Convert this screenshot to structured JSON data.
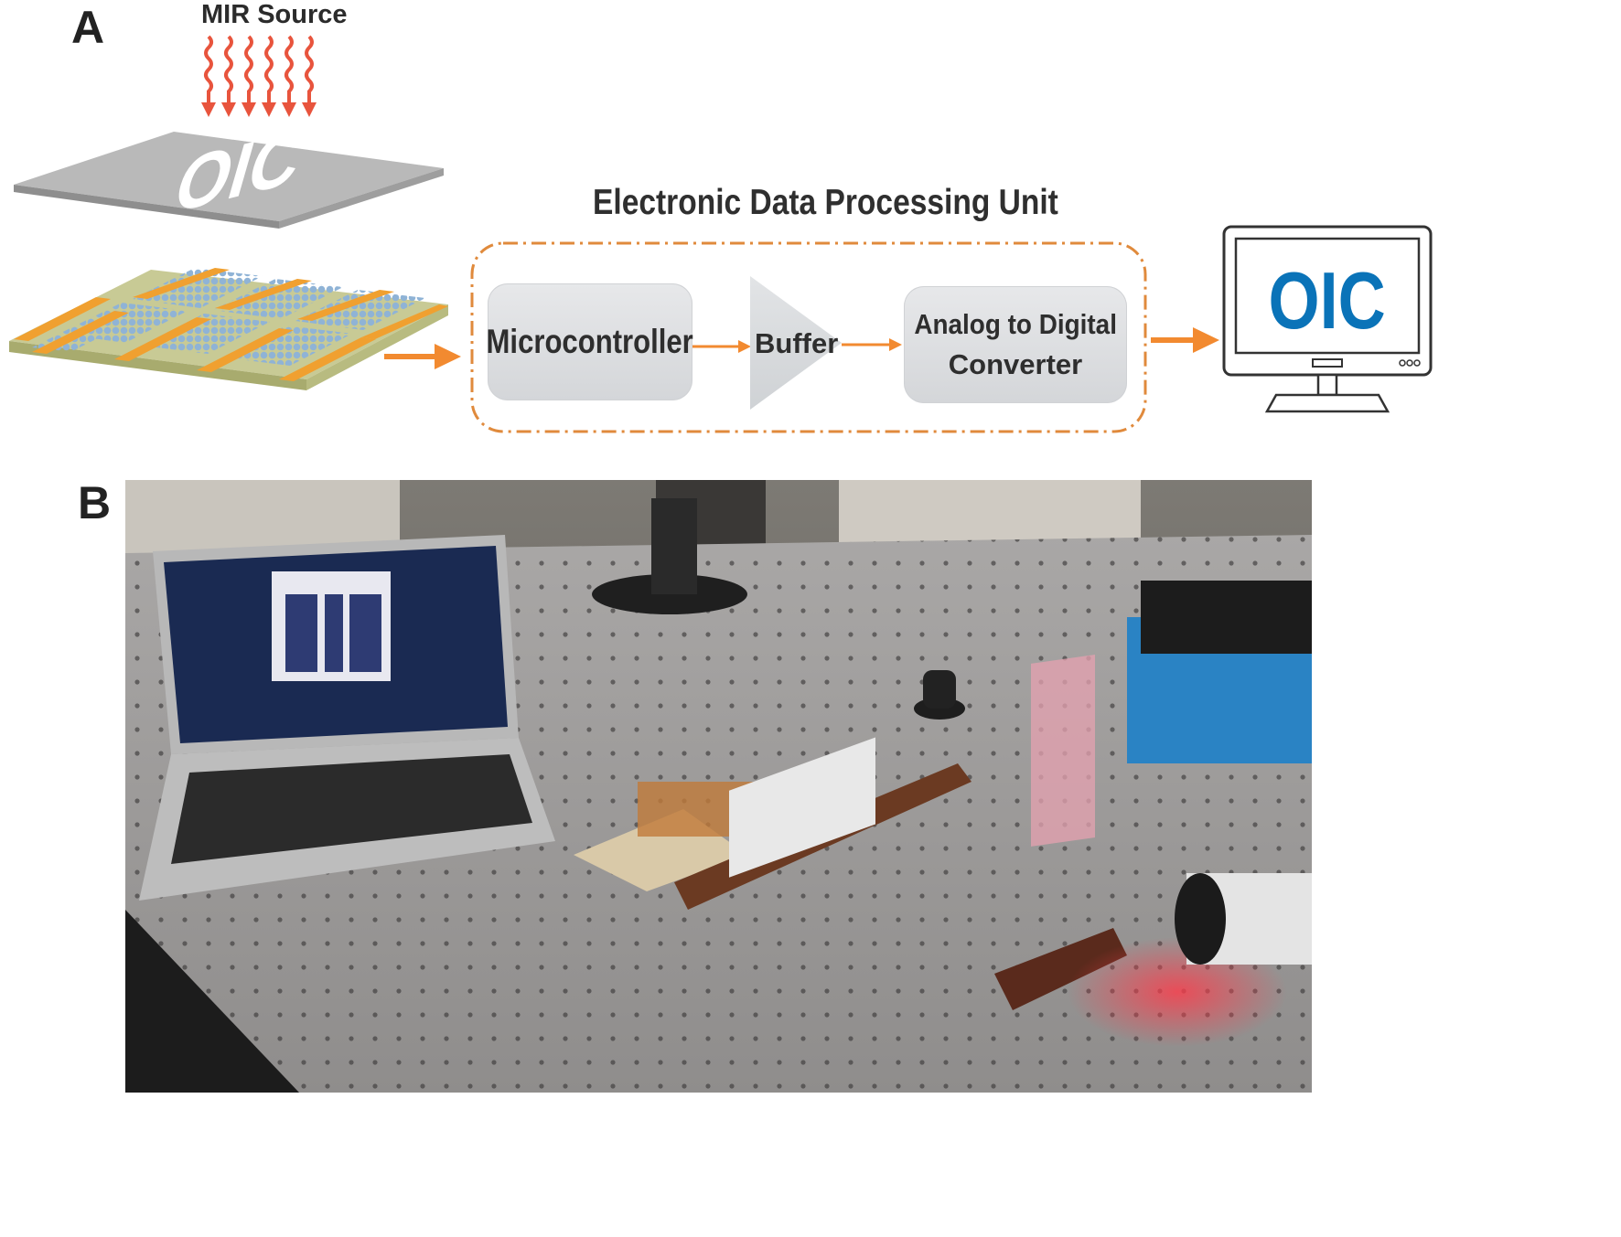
{
  "panel_a": {
    "letter": "A",
    "source_label": "MIR Source",
    "mask_text": "OIC",
    "epu_title": "Electronic Data Processing Unit",
    "blocks": {
      "microcontroller": "Microcontroller",
      "buffer": "Buffer",
      "adc_line1": "Analog to Digital",
      "adc_line2": "Converter"
    },
    "monitor_text": "OIC",
    "colors": {
      "arrow": "#f28a30",
      "radiation": "#e8543d",
      "monitor_text": "#0a73b8",
      "dashed_border": "#e08a3c"
    }
  },
  "panel_b": {
    "letter": "B",
    "photo_description_icon": "lab-photo-placeholder"
  }
}
